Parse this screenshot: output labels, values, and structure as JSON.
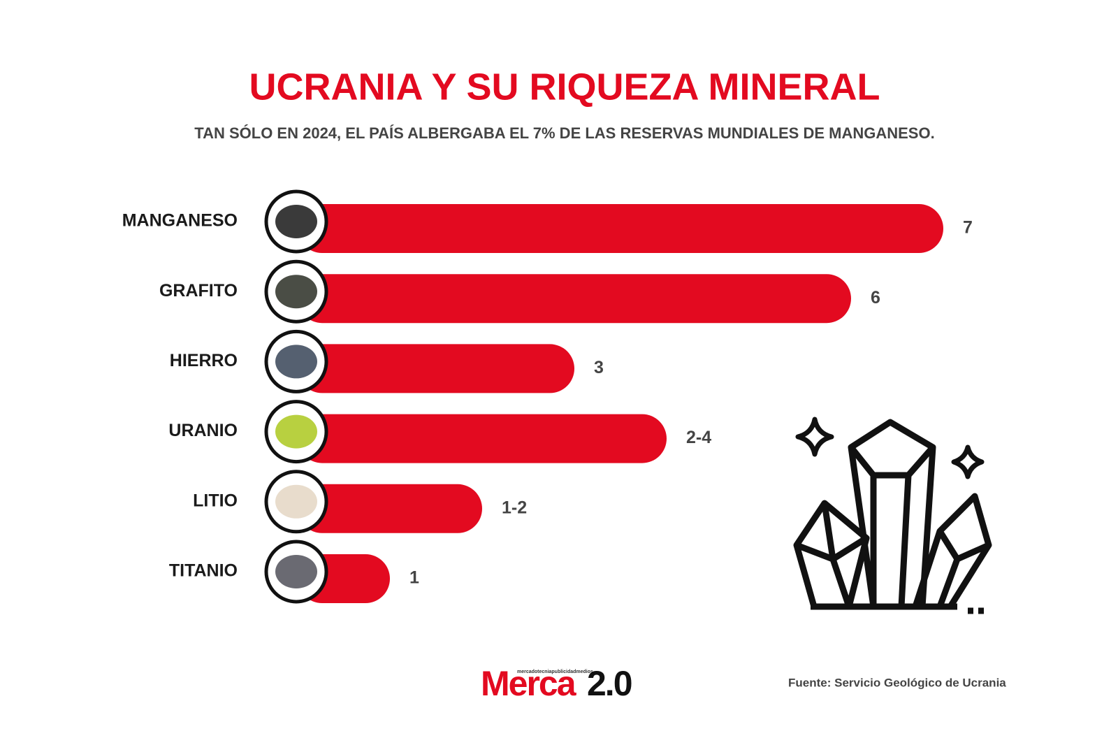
{
  "chart_data": {
    "type": "bar",
    "orientation": "horizontal",
    "title": "UCRANIA Y SU RIQUEZA MINERAL",
    "subtitle": "TAN SÓLO EN 2024, EL PAÍS ALBERGABA EL 7% DE LAS RESERVAS MUNDIALES DE MANGANESO.",
    "categories": [
      "MANGANESO",
      "GRAFITO",
      "HIERRO",
      "URANIO",
      "LITIO",
      "TITANIO"
    ],
    "values": [
      7,
      6,
      3,
      4,
      2,
      1
    ],
    "value_labels": [
      "7",
      "6",
      "3",
      "2-4",
      "1-2",
      "1"
    ],
    "color": "#e30a20",
    "source": "Fuente: Servicio Geológico de Ucrania"
  },
  "logo": {
    "tagline": "mercadotecniapublicidadmedios",
    "name": "Merca",
    "version": "2.0"
  }
}
